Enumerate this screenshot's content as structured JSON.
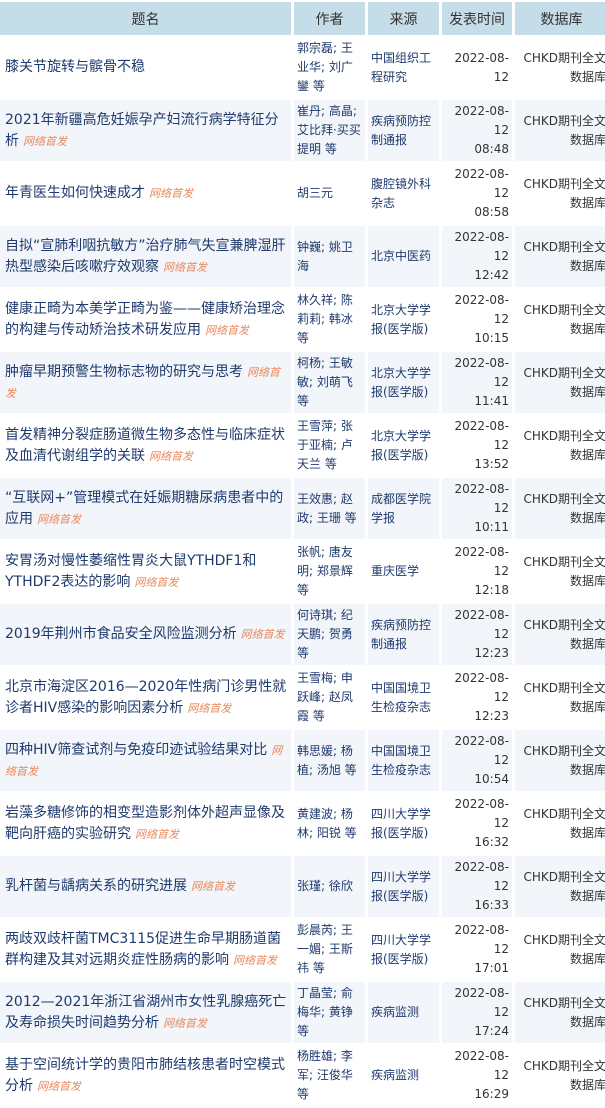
{
  "headers": [
    "题名",
    "作者",
    "来源",
    "发表时间",
    "数据库"
  ],
  "tag": "网络首发",
  "rows": [
    {
      "title": "膝关节旋转与髌骨不稳",
      "tag": "",
      "author": "郭宗磊; 王业华; 刘广鑾 等",
      "source": "中国组织工程研究",
      "date": "2022-08-12",
      "time": "",
      "db": "CHKD期刊全文数据库"
    },
    {
      "title": "2021年新疆高危妊娠孕产妇流行病学特征分析",
      "tag": "网络首发",
      "author": "崔丹; 高晶; 艾比拜·买买提明 等",
      "source": "疾病预防控制通报",
      "date": "2022-08-12",
      "time": "08:48",
      "db": "CHKD期刊全文数据库"
    },
    {
      "title": "年青医生如何快速成才",
      "tag": "网络首发",
      "author": "胡三元",
      "source": "腹腔镜外科杂志",
      "date": "2022-08-12",
      "time": "08:58",
      "db": "CHKD期刊全文数据库"
    },
    {
      "title": "自拟“宣肺利咽抗敏方”治疗肺气失宣兼脾湿肝热型感染后咳嗽疗效观察",
      "tag": "网络首发",
      "author": "钟巍; 姚卫海",
      "source": "北京中医药",
      "date": "2022-08-12",
      "time": "12:42",
      "db": "CHKD期刊全文数据库"
    },
    {
      "title": "健康正畸为本美学正畸为鉴——健康矫治理念的构建与传动矫治技术研发应用",
      "tag": "网络首发",
      "author": "林久祥; 陈莉莉; 韩冰 等",
      "source": "北京大学学报(医学版)",
      "date": "2022-08-12",
      "time": "10:15",
      "db": "CHKD期刊全文数据库"
    },
    {
      "title": "肿瘤早期预警生物标志物的研究与思考",
      "tag": "网络首发",
      "author": "柯杨; 王敏敏; 刘萌飞 等",
      "source": "北京大学学报(医学版)",
      "date": "2022-08-12",
      "time": "11:41",
      "db": "CHKD期刊全文数据库"
    },
    {
      "title": "首发精神分裂症肠道微生物多态性与临床症状及血清代谢组学的关联",
      "tag": "网络首发",
      "author": "王雪萍; 张于亚楠; 卢天兰 等",
      "source": "北京大学学报(医学版)",
      "date": "2022-08-12",
      "time": "13:52",
      "db": "CHKD期刊全文数据库"
    },
    {
      "title": "“互联网+”管理模式在妊娠期糖尿病患者中的应用",
      "tag": "网络首发",
      "author": "王效惠; 赵政; 王珊 等",
      "source": "成都医学院学报",
      "date": "2022-08-12",
      "time": "10:11",
      "db": "CHKD期刊全文数据库"
    },
    {
      "title": "安胃汤对慢性萎缩性胃炎大鼠YTHDF1和YTHDF2表达的影响",
      "tag": "网络首发",
      "author": "张帆; 唐友明; 郑景辉 等",
      "source": "重庆医学",
      "date": "2022-08-12",
      "time": "12:18",
      "db": "CHKD期刊全文数据库"
    },
    {
      "title": "2019年荆州市食品安全风险监测分析",
      "tag": "网络首发",
      "author": "何诗琪; 纪天鹏; 贺勇 等",
      "source": "疾病预防控制通报",
      "date": "2022-08-12",
      "time": "12:23",
      "db": "CHKD期刊全文数据库"
    },
    {
      "title": "北京市海淀区2016—2020年性病门诊男性就诊者HIV感染的影响因素分析",
      "tag": "网络首发",
      "author": "王雪梅; 申跃峰; 赵凤霞 等",
      "source": "中国国境卫生检疫杂志",
      "date": "2022-08-12",
      "time": "12:23",
      "db": "CHKD期刊全文数据库"
    },
    {
      "title": "四种HIV筛查试剂与免疫印迹试验结果对比",
      "tag": "网络首发",
      "author": "韩思媛; 杨植; 汤旭 等",
      "source": "中国国境卫生检疫杂志",
      "date": "2022-08-12",
      "time": "10:54",
      "db": "CHKD期刊全文数据库"
    },
    {
      "title": "岩藻多糖修饰的相变型造影剂体外超声显像及靶向肝癌的实验研究",
      "tag": "网络首发",
      "author": "黄建波; 杨林; 阳锐 等",
      "source": "四川大学学报(医学版)",
      "date": "2022-08-12",
      "time": "16:32",
      "db": "CHKD期刊全文数据库"
    },
    {
      "title": "乳杆菌与龋病关系的研究进展",
      "tag": "网络首发",
      "author": "张瑾; 徐欣",
      "source": "四川大学学报(医学版)",
      "date": "2022-08-12",
      "time": "16:33",
      "db": "CHKD期刊全文数据库"
    },
    {
      "title": "两歧双歧杆菌TMC3115促进生命早期肠道菌群构建及其对远期炎症性肠病的影响",
      "tag": "网络首发",
      "author": "彭晨芮; 王一媚; 王斯祎 等",
      "source": "四川大学学报(医学版)",
      "date": "2022-08-12",
      "time": "17:01",
      "db": "CHKD期刊全文数据库"
    },
    {
      "title": "2012—2021年浙江省湖州市女性乳腺癌死亡及寿命损失时间趋势分析",
      "tag": "网络首发",
      "author": "丁晶莹; 俞梅华; 黄铮 等",
      "source": "疾病监测",
      "date": "2022-08-12",
      "time": "17:24",
      "db": "CHKD期刊全文数据库"
    },
    {
      "title": "基于空间统计学的贵阳市肺结核患者时空模式分析",
      "tag": "网络首发",
      "author": "杨胜雄; 李军; 汪俊华 等",
      "source": "疾病监测",
      "date": "2022-08-12",
      "time": "16:29",
      "db": "CHKD期刊全文数据库"
    }
  ]
}
